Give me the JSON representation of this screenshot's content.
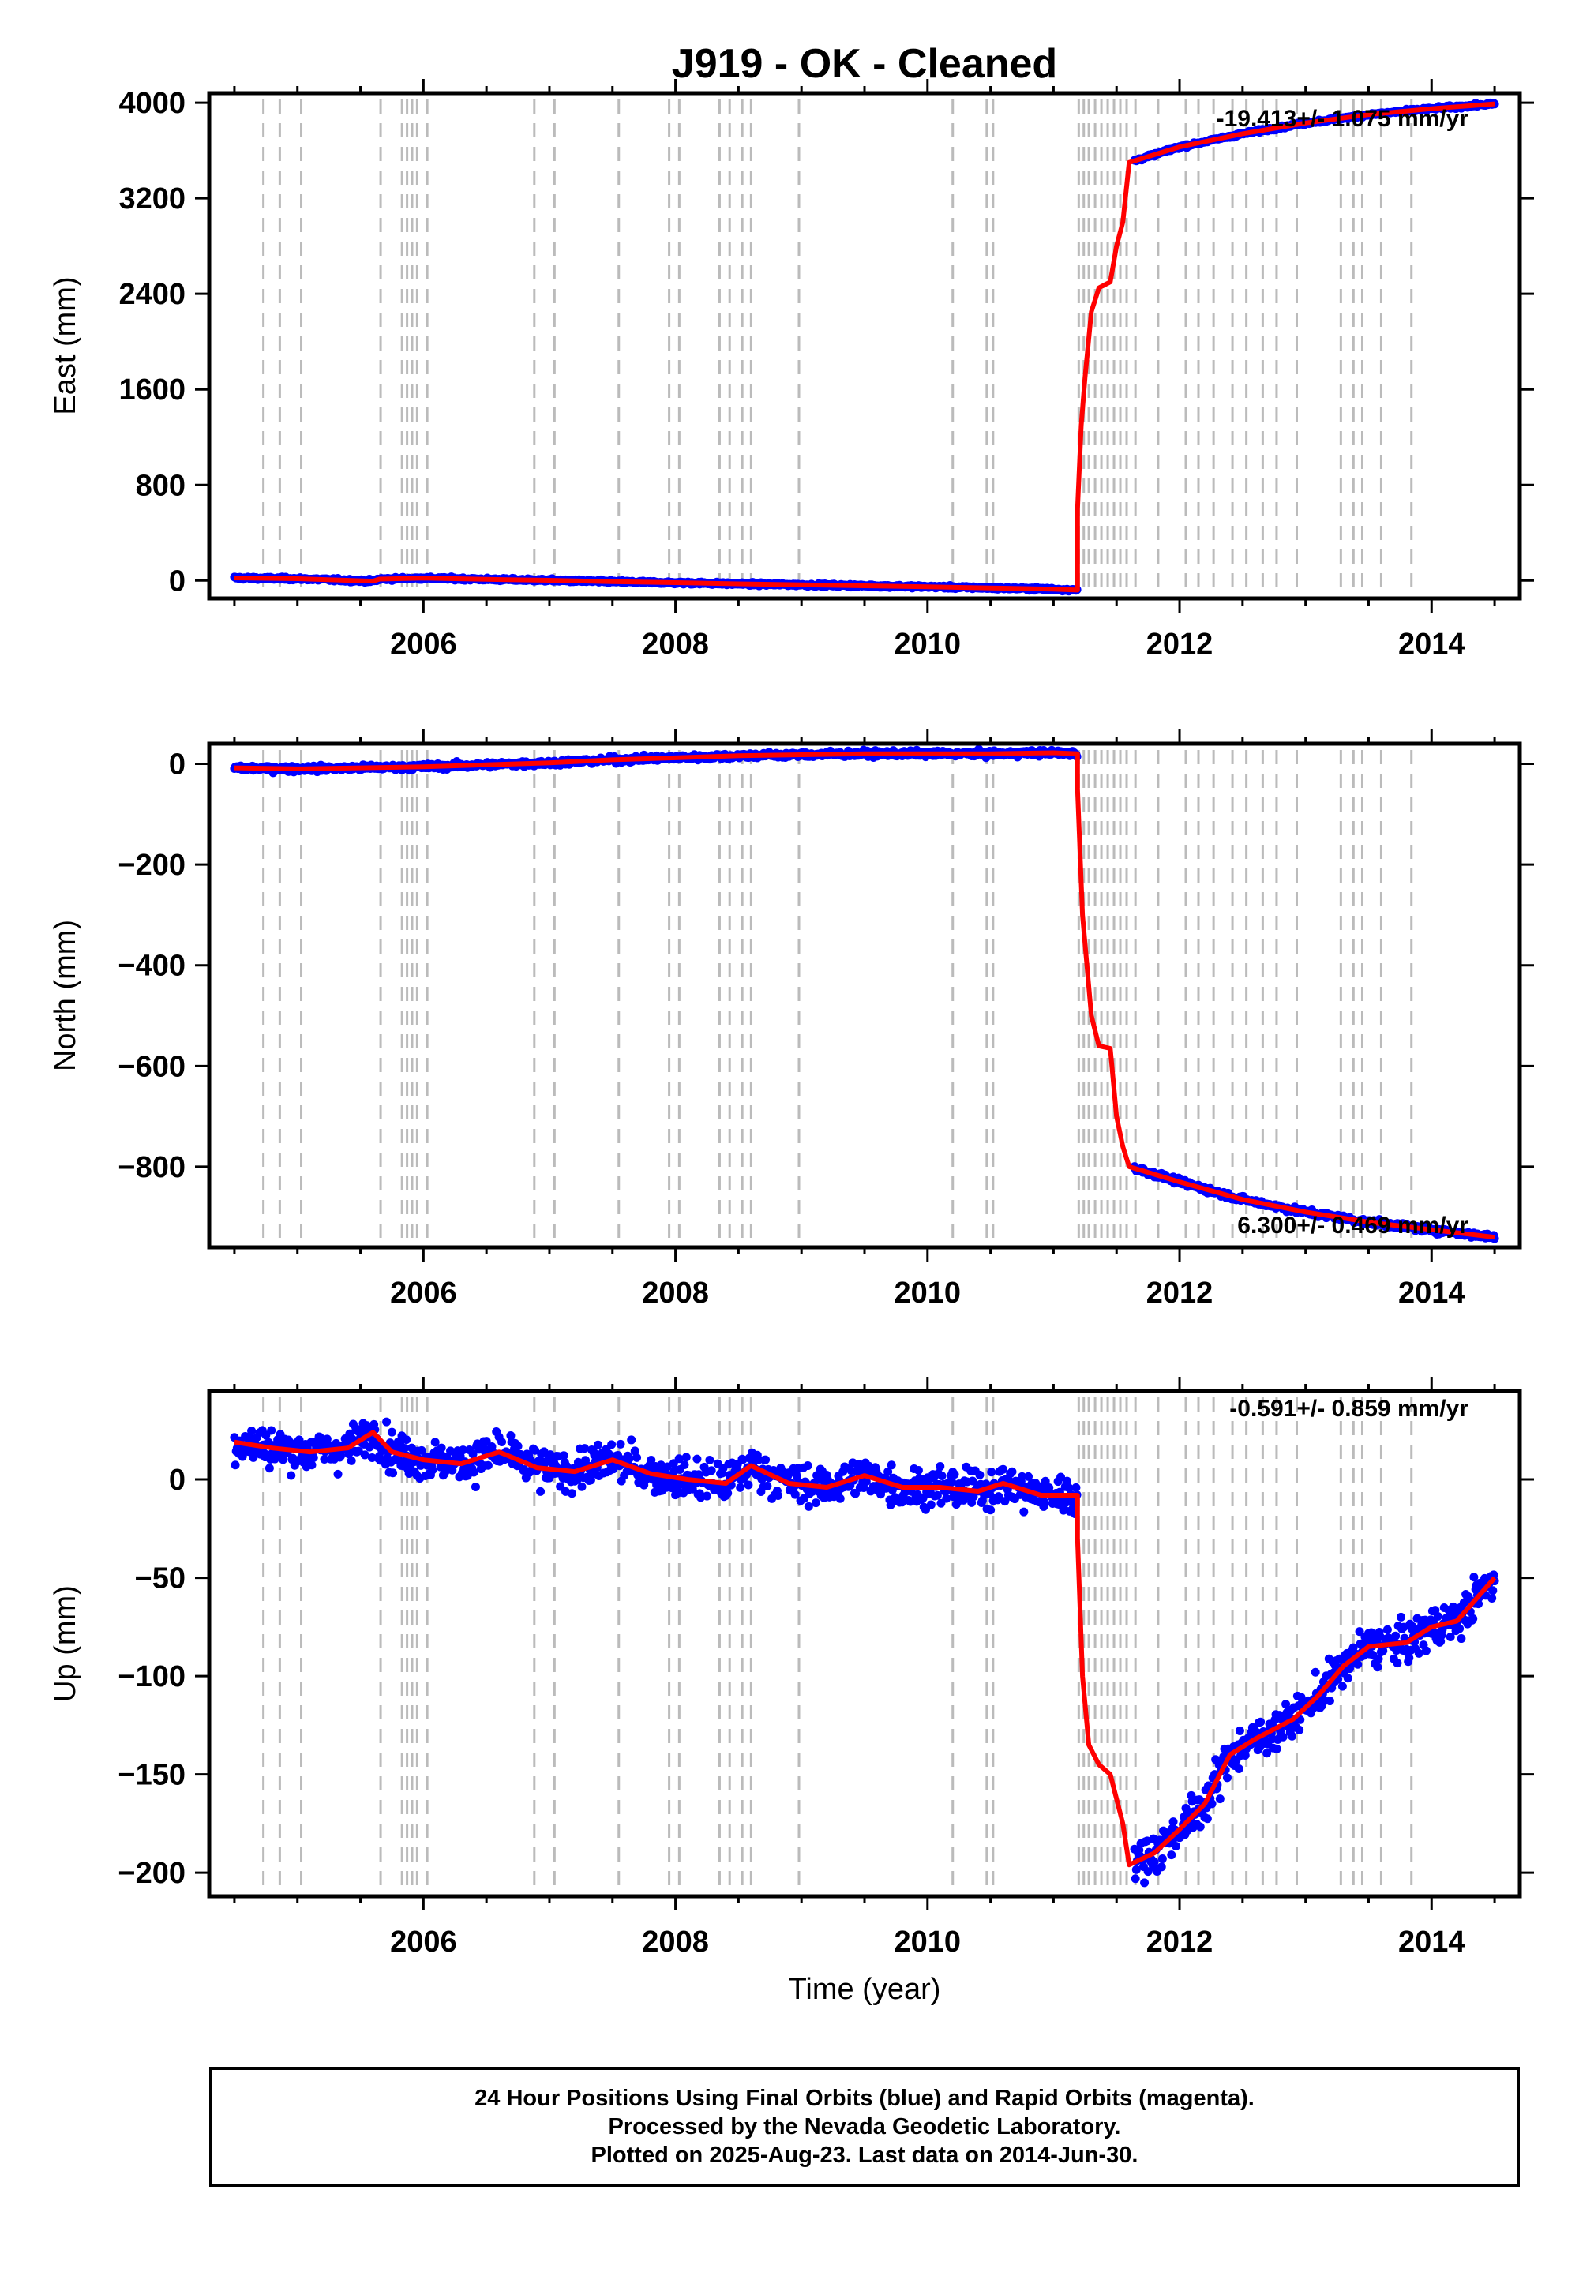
{
  "title": "J919  - OK - Cleaned",
  "caption": [
    "24 Hour Positions Using Final Orbits (blue) and Rapid Orbits (magenta).",
    "Processed by the Nevada Geodetic Laboratory.",
    "Plotted on 2025-Aug-23. Last data on 2014-Jun-30."
  ],
  "colors": {
    "points": "#0000ff",
    "model": "#ff0000",
    "breaks": "#bbbbbb",
    "frame": "#000000"
  },
  "chart_data": [
    {
      "type": "scatter",
      "ylabel": "East (mm)",
      "xlabel": "",
      "xlim": [
        2004.3,
        2014.7
      ],
      "ylim": [
        -150,
        4080
      ],
      "xticks": [
        2006,
        2008,
        2010,
        2012,
        2014
      ],
      "yticks": [
        0,
        800,
        1600,
        2400,
        3200,
        4000
      ],
      "rate": "-19.413+/- 1.075 mm/yr",
      "model": [
        [
          2004.5,
          22
        ],
        [
          2005.0,
          15
        ],
        [
          2005.6,
          -5
        ],
        [
          2005.65,
          12
        ],
        [
          2006.0,
          20
        ],
        [
          2006.5,
          10
        ],
        [
          2007.0,
          2
        ],
        [
          2007.5,
          -10
        ],
        [
          2008.0,
          -18
        ],
        [
          2008.5,
          -28
        ],
        [
          2009.0,
          -36
        ],
        [
          2009.5,
          -44
        ],
        [
          2010.0,
          -52
        ],
        [
          2010.5,
          -62
        ],
        [
          2011.0,
          -72
        ],
        [
          2011.19,
          -80
        ],
        [
          2011.19,
          600
        ],
        [
          2011.22,
          1300
        ],
        [
          2011.25,
          1700
        ],
        [
          2011.3,
          2250
        ],
        [
          2011.36,
          2450
        ],
        [
          2011.45,
          2500
        ],
        [
          2011.5,
          2800
        ],
        [
          2011.55,
          3000
        ],
        [
          2011.6,
          3500
        ],
        [
          2012.0,
          3630
        ],
        [
          2012.5,
          3740
        ],
        [
          2013.0,
          3830
        ],
        [
          2013.5,
          3900
        ],
        [
          2014.0,
          3950
        ],
        [
          2014.5,
          3990
        ]
      ],
      "points_mode": "follow",
      "scatter_noise": 8,
      "gap": [
        2011.19,
        2011.64
      ],
      "rapid": []
    },
    {
      "type": "scatter",
      "ylabel": "North (mm)",
      "xlabel": "",
      "xlim": [
        2004.3,
        2014.7
      ],
      "ylim": [
        -960,
        40
      ],
      "xticks": [
        2006,
        2008,
        2010,
        2012,
        2014
      ],
      "yticks": [
        0,
        -200,
        -400,
        -600,
        -800
      ],
      "rate": "6.300+/- 0.469 mm/yr",
      "model": [
        [
          2004.5,
          -8
        ],
        [
          2005.0,
          -10
        ],
        [
          2005.5,
          -8
        ],
        [
          2006.0,
          -6
        ],
        [
          2006.5,
          -2
        ],
        [
          2007.0,
          2
        ],
        [
          2007.5,
          8
        ],
        [
          2008.0,
          12
        ],
        [
          2008.5,
          16
        ],
        [
          2009.0,
          18
        ],
        [
          2009.5,
          20
        ],
        [
          2010.0,
          20
        ],
        [
          2010.5,
          20
        ],
        [
          2011.0,
          22
        ],
        [
          2011.19,
          20
        ],
        [
          2011.19,
          -50
        ],
        [
          2011.23,
          -300
        ],
        [
          2011.3,
          -500
        ],
        [
          2011.36,
          -560
        ],
        [
          2011.45,
          -565
        ],
        [
          2011.5,
          -700
        ],
        [
          2011.55,
          -760
        ],
        [
          2011.6,
          -800
        ],
        [
          2012.0,
          -830
        ],
        [
          2012.5,
          -865
        ],
        [
          2013.0,
          -890
        ],
        [
          2013.5,
          -910
        ],
        [
          2014.0,
          -925
        ],
        [
          2014.5,
          -940
        ]
      ],
      "points_mode": "follow",
      "scatter_noise": 4,
      "gap": [
        2011.19,
        2011.64
      ],
      "rapid": []
    },
    {
      "type": "scatter",
      "ylabel": "Up (mm)",
      "xlabel": "Time (year)",
      "xlim": [
        2004.3,
        2014.7
      ],
      "ylim": [
        -212,
        45
      ],
      "xticks": [
        2006,
        2008,
        2010,
        2012,
        2014
      ],
      "yticks": [
        0,
        -50,
        -100,
        -150,
        -200
      ],
      "rate": "-0.591+/- 0.859 mm/yr",
      "model": [
        [
          2004.5,
          19
        ],
        [
          2004.8,
          16
        ],
        [
          2005.1,
          14
        ],
        [
          2005.4,
          16
        ],
        [
          2005.6,
          24
        ],
        [
          2005.75,
          14
        ],
        [
          2006.0,
          10
        ],
        [
          2006.3,
          8
        ],
        [
          2006.6,
          14
        ],
        [
          2006.9,
          6
        ],
        [
          2007.2,
          4
        ],
        [
          2007.5,
          10
        ],
        [
          2007.8,
          3
        ],
        [
          2008.1,
          0
        ],
        [
          2008.4,
          -2
        ],
        [
          2008.6,
          7
        ],
        [
          2008.9,
          -2
        ],
        [
          2009.2,
          -4
        ],
        [
          2009.5,
          2
        ],
        [
          2009.8,
          -4
        ],
        [
          2010.1,
          -4
        ],
        [
          2010.4,
          -6
        ],
        [
          2010.6,
          -2
        ],
        [
          2010.9,
          -8
        ],
        [
          2011.19,
          -8
        ],
        [
          2011.19,
          -30
        ],
        [
          2011.23,
          -100
        ],
        [
          2011.28,
          -135
        ],
        [
          2011.36,
          -145
        ],
        [
          2011.45,
          -150
        ],
        [
          2011.55,
          -175
        ],
        [
          2011.6,
          -196
        ],
        [
          2011.8,
          -190
        ],
        [
          2012.0,
          -178
        ],
        [
          2012.2,
          -165
        ],
        [
          2012.4,
          -140
        ],
        [
          2012.6,
          -132
        ],
        [
          2012.9,
          -122
        ],
        [
          2013.1,
          -110
        ],
        [
          2013.3,
          -95
        ],
        [
          2013.5,
          -85
        ],
        [
          2013.8,
          -83
        ],
        [
          2014.0,
          -75
        ],
        [
          2014.2,
          -72
        ],
        [
          2014.5,
          -50
        ]
      ],
      "points_mode": "follow",
      "scatter_noise": 7,
      "gap": [
        2011.19,
        2011.64
      ],
      "rapid": []
    }
  ],
  "breaks": [
    2004.73,
    2004.86,
    2005.03,
    2005.66,
    2005.83,
    2005.87,
    2005.91,
    2005.95,
    2006.03,
    2006.88,
    2007.04,
    2007.55,
    2007.95,
    2008.03,
    2008.35,
    2008.43,
    2008.53,
    2008.6,
    2008.98,
    2010.2,
    2010.47,
    2010.52,
    2011.2,
    2011.24,
    2011.28,
    2011.33,
    2011.38,
    2011.43,
    2011.48,
    2011.53,
    2011.58,
    2011.65,
    2011.83,
    2012.05,
    2012.15,
    2012.27,
    2012.42,
    2012.53,
    2012.66,
    2012.77,
    2012.93,
    2013.28,
    2013.38,
    2013.45,
    2013.6,
    2013.84
  ]
}
